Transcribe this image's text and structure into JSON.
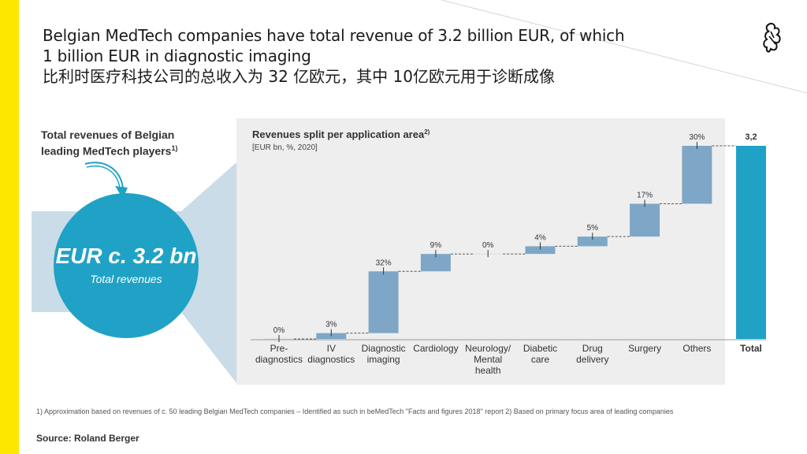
{
  "title": {
    "line1": "Belgian MedTech companies have total revenue of 3.2 billion EUR, of which",
    "line2": "1 billion EUR in diagnostic imaging",
    "zh": "比利时医疗科技公司的总收入为 32 亿欧元，其中 10亿欧元用于诊断成像"
  },
  "left": {
    "heading_line1": "Total revenues of Belgian",
    "heading_line2": "leading MedTech players",
    "heading_sup": "1)",
    "circle_big": "EUR c. 3.2 bn",
    "circle_small": "Total revenues"
  },
  "colors": {
    "accent": "#1fa2c5",
    "bar": "#7ea7c7",
    "yellow": "#fde700",
    "band": "#c9dce8",
    "panel": "#eeeeee"
  },
  "chart_data": {
    "type": "waterfall",
    "title": "Revenues split per application area",
    "title_sup": "2)",
    "subtitle": "[EUR bn, %, 2020]",
    "categories": [
      [
        "Pre-",
        "diagnostics"
      ],
      [
        "IV",
        "diagnostics"
      ],
      [
        "Diagnostic",
        "imaging"
      ],
      [
        "Cardiology"
      ],
      [
        "Neurology/",
        "Mental",
        "health"
      ],
      [
        "Diabetic",
        "care"
      ],
      [
        "Drug",
        "delivery"
      ],
      [
        "Surgery"
      ],
      [
        "Others"
      ]
    ],
    "share_pct": [
      0,
      3,
      32,
      9,
      0,
      4,
      5,
      17,
      30
    ],
    "labels": [
      "0%",
      "3%",
      "32%",
      "9%",
      "0%",
      "4%",
      "5%",
      "17%",
      "30%"
    ],
    "total_label": "Total",
    "total_value": 3.2,
    "total_value_label": "3,2"
  },
  "footnote": "1) Approximation based on revenues of c. 50 leading Belgian MedTech companies – Identified as such in beMedTech \"Facts and figures 2018\" report    2) Based on primary focus area of leading companies",
  "source": "Source: Roland Berger"
}
